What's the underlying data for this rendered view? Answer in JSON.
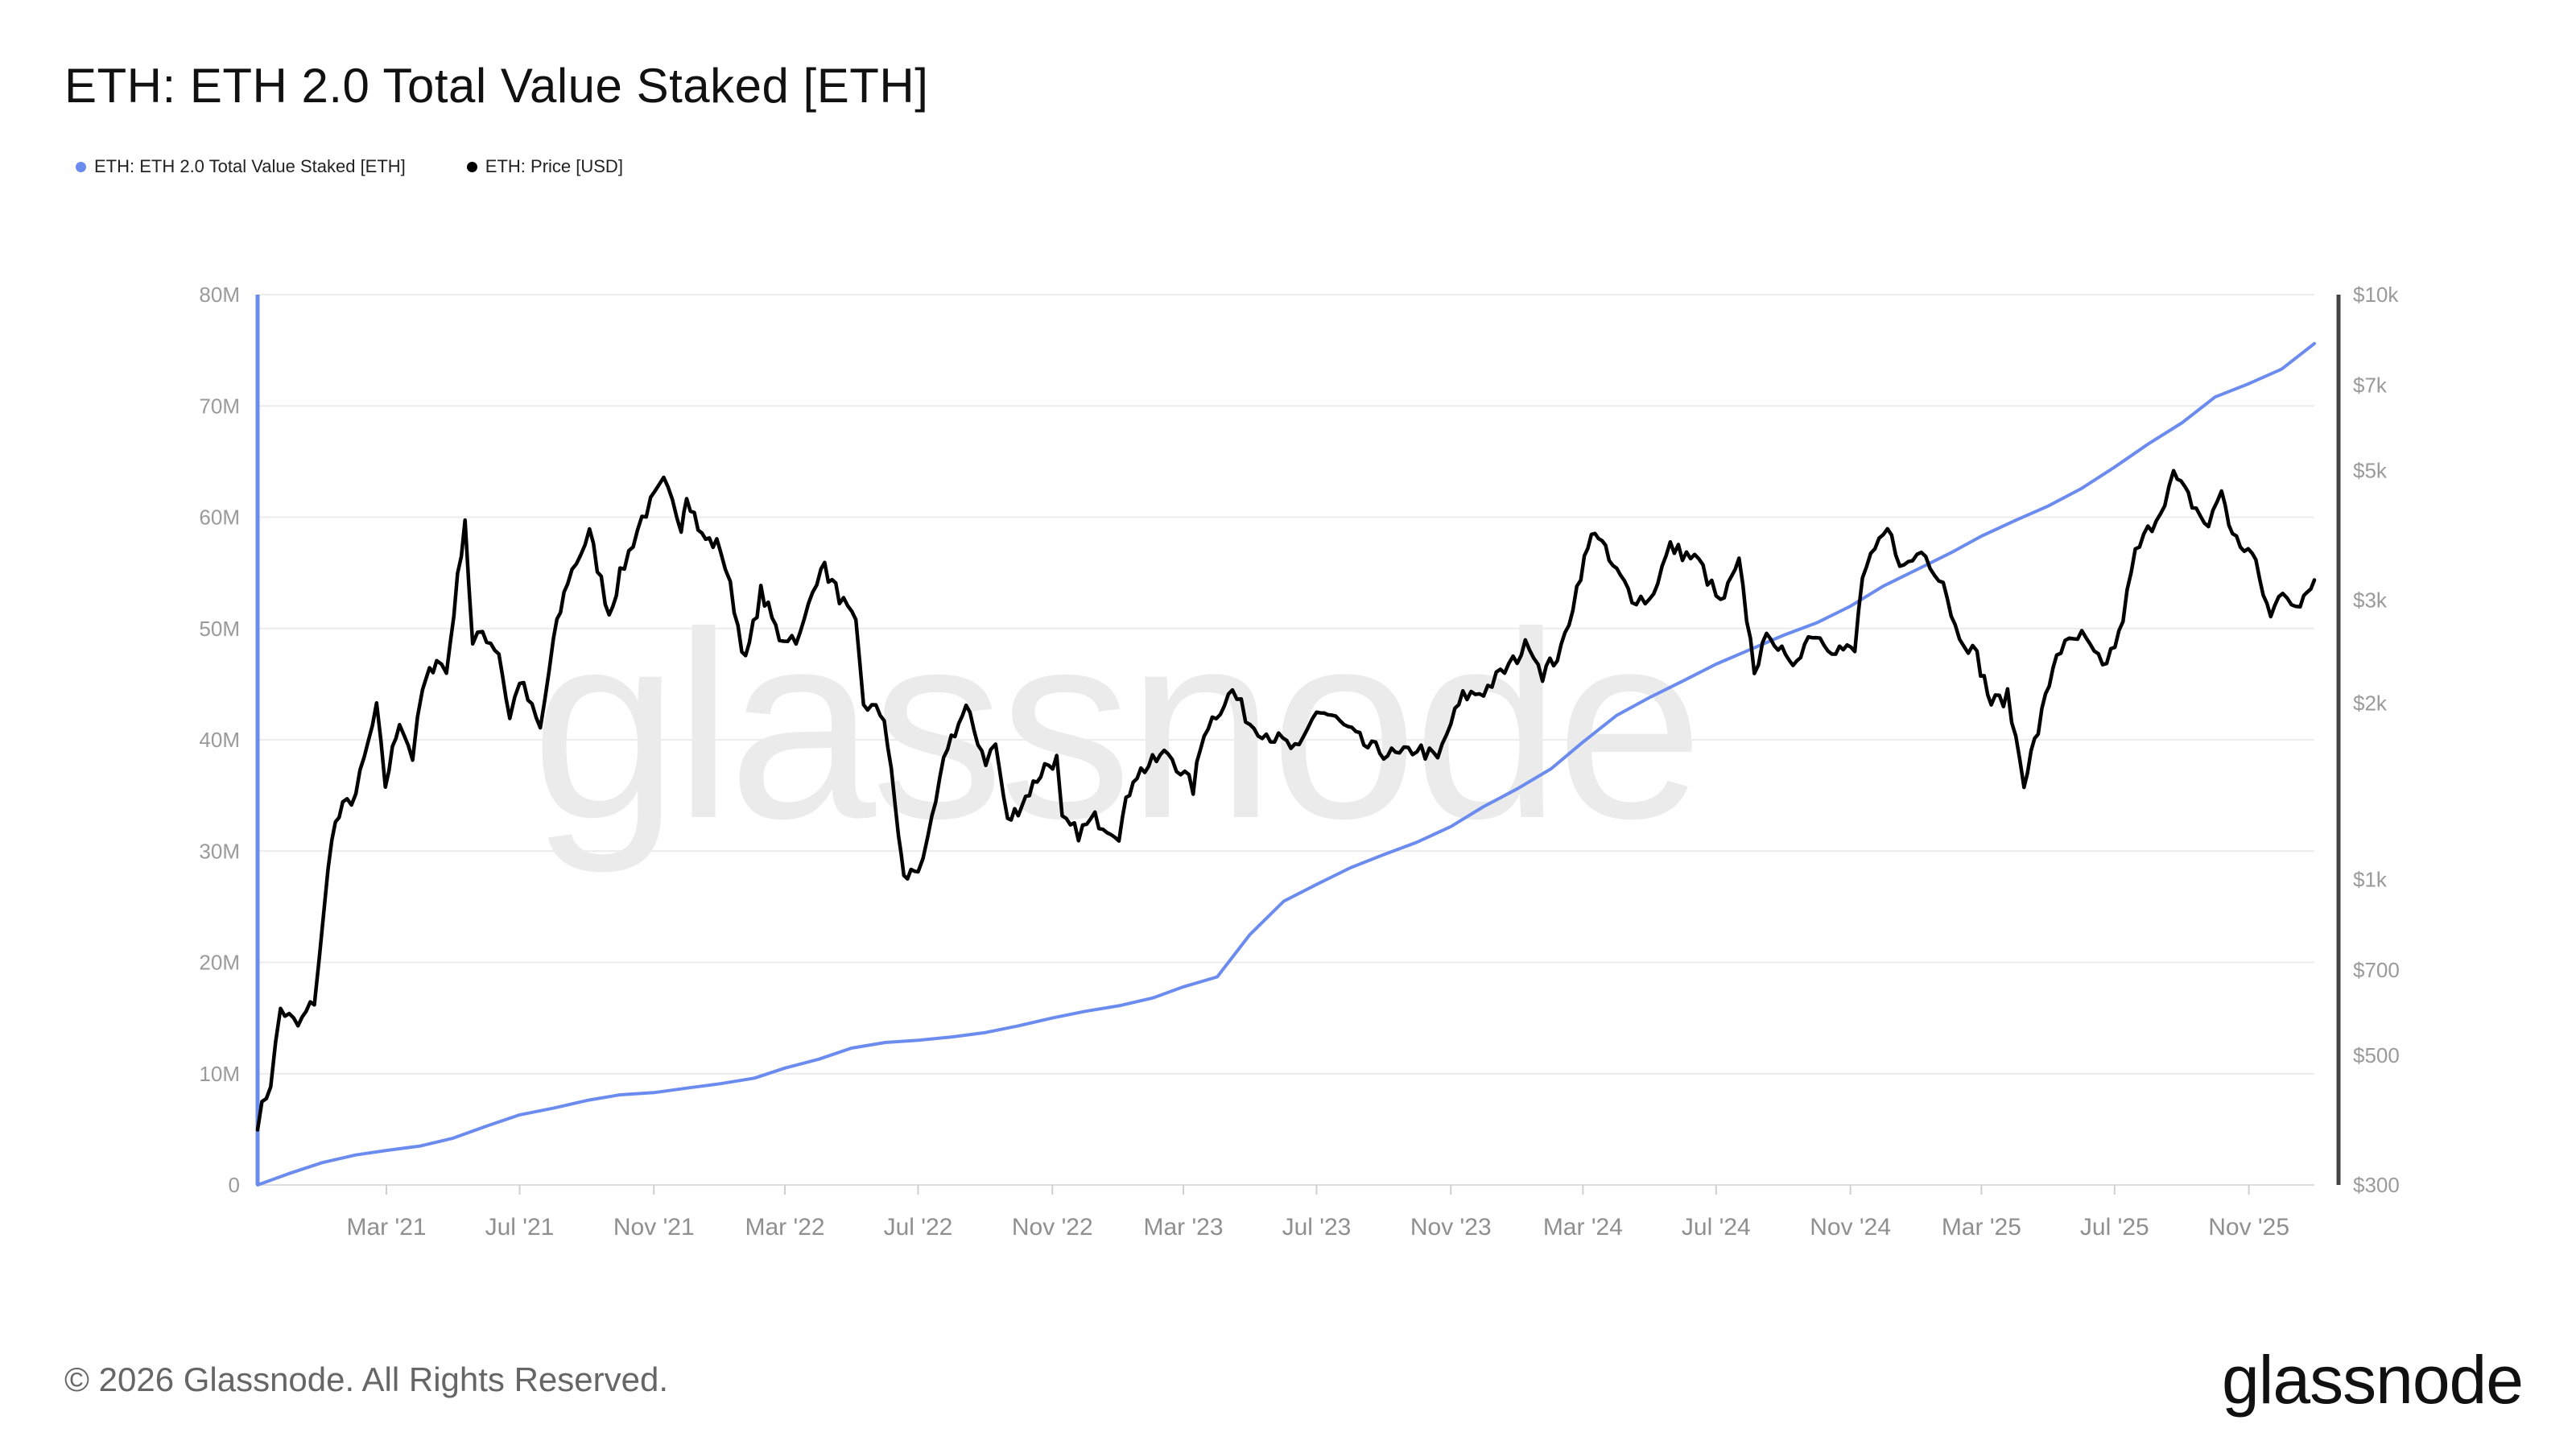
{
  "header": {
    "title": "ETH: ETH 2.0 Total Value Staked [ETH]"
  },
  "legend": {
    "items": [
      {
        "label": "ETH: ETH 2.0 Total Value Staked [ETH]",
        "color": "#6b8cee"
      },
      {
        "label": "ETH: Price [USD]",
        "color": "#000000"
      }
    ]
  },
  "watermark": "glassnode",
  "footer": {
    "copyright": "© 2026 Glassnode. All Rights Reserved.",
    "brand": "glassnode"
  },
  "chart_data": {
    "type": "line",
    "x_start": "2020-11-03",
    "x_end": "2025-12-31",
    "x_ticks": [
      "Mar '21",
      "Jul '21",
      "Nov '21",
      "Mar '22",
      "Jul '22",
      "Nov '22",
      "Mar '23",
      "Jul '23",
      "Nov '23",
      "Mar '24",
      "Jul '24",
      "Nov '24",
      "Mar '25",
      "Jul '25",
      "Nov '25"
    ],
    "y_left": {
      "min": 0,
      "max": 80000000,
      "ticks": [
        0,
        10000000,
        20000000,
        30000000,
        40000000,
        50000000,
        60000000,
        70000000,
        80000000
      ],
      "tick_labels": [
        "0",
        "10M",
        "20M",
        "30M",
        "40M",
        "50M",
        "60M",
        "70M",
        "80M"
      ]
    },
    "y_right": {
      "scale": "log",
      "min": 300,
      "max": 10000,
      "ticks": [
        300,
        500,
        700,
        1000,
        2000,
        3000,
        5000,
        7000,
        10000
      ],
      "tick_labels": [
        "$300",
        "$500",
        "$700",
        "$1k",
        "$2k",
        "$3k",
        "$5k",
        "$7k",
        "$10k"
      ]
    },
    "grid": true,
    "legend_position": "top-left",
    "series": [
      {
        "name": "ETH: ETH 2.0 Total Value Staked [ETH]",
        "axis": "left",
        "color": "#6b8cee",
        "points": [
          [
            "2020-11-03",
            0
          ],
          [
            "2020-12-01",
            1000000
          ],
          [
            "2021-01-01",
            2000000
          ],
          [
            "2021-02-01",
            2700000
          ],
          [
            "2021-03-01",
            3100000
          ],
          [
            "2021-04-01",
            3500000
          ],
          [
            "2021-05-01",
            4200000
          ],
          [
            "2021-06-01",
            5300000
          ],
          [
            "2021-07-01",
            6300000
          ],
          [
            "2021-08-01",
            6900000
          ],
          [
            "2021-09-01",
            7600000
          ],
          [
            "2021-10-01",
            8100000
          ],
          [
            "2021-11-01",
            8300000
          ],
          [
            "2021-12-01",
            8700000
          ],
          [
            "2022-01-01",
            9100000
          ],
          [
            "2022-02-01",
            9600000
          ],
          [
            "2022-03-01",
            10500000
          ],
          [
            "2022-04-01",
            11300000
          ],
          [
            "2022-05-01",
            12300000
          ],
          [
            "2022-06-01",
            12800000
          ],
          [
            "2022-07-01",
            13000000
          ],
          [
            "2022-08-01",
            13300000
          ],
          [
            "2022-09-01",
            13700000
          ],
          [
            "2022-10-01",
            14300000
          ],
          [
            "2022-11-01",
            15000000
          ],
          [
            "2022-12-01",
            15600000
          ],
          [
            "2023-01-01",
            16100000
          ],
          [
            "2023-02-01",
            16800000
          ],
          [
            "2023-03-01",
            17800000
          ],
          [
            "2023-04-01",
            18700000
          ],
          [
            "2023-05-01",
            22500000
          ],
          [
            "2023-06-01",
            25500000
          ],
          [
            "2023-07-01",
            27000000
          ],
          [
            "2023-08-01",
            28500000
          ],
          [
            "2023-09-01",
            29700000
          ],
          [
            "2023-10-01",
            30800000
          ],
          [
            "2023-11-01",
            32200000
          ],
          [
            "2023-12-01",
            34000000
          ],
          [
            "2024-01-01",
            35600000
          ],
          [
            "2024-02-01",
            37400000
          ],
          [
            "2024-03-01",
            39800000
          ],
          [
            "2024-04-01",
            42200000
          ],
          [
            "2024-05-01",
            43800000
          ],
          [
            "2024-06-01",
            45300000
          ],
          [
            "2024-07-01",
            46800000
          ],
          [
            "2024-08-01",
            48100000
          ],
          [
            "2024-09-01",
            49400000
          ],
          [
            "2024-10-01",
            50500000
          ],
          [
            "2024-11-01",
            52000000
          ],
          [
            "2024-12-01",
            53800000
          ],
          [
            "2025-01-01",
            55300000
          ],
          [
            "2025-02-01",
            56800000
          ],
          [
            "2025-03-01",
            58300000
          ],
          [
            "2025-04-01",
            59700000
          ],
          [
            "2025-05-01",
            61000000
          ],
          [
            "2025-06-01",
            62600000
          ],
          [
            "2025-07-01",
            64500000
          ],
          [
            "2025-08-01",
            66600000
          ],
          [
            "2025-09-01",
            68500000
          ],
          [
            "2025-10-01",
            70800000
          ],
          [
            "2025-11-01",
            72000000
          ],
          [
            "2025-12-01",
            73300000
          ],
          [
            "2025-12-31",
            75600000
          ]
        ]
      },
      {
        "name": "ETH: Price [USD]",
        "axis": "right",
        "color": "#000000",
        "points": [
          [
            "2020-11-03",
            385
          ],
          [
            "2020-11-15",
            450
          ],
          [
            "2020-11-24",
            600
          ],
          [
            "2020-12-10",
            560
          ],
          [
            "2020-12-25",
            620
          ],
          [
            "2021-01-03",
            880
          ],
          [
            "2021-01-10",
            1200
          ],
          [
            "2021-01-20",
            1320
          ],
          [
            "2021-02-01",
            1400
          ],
          [
            "2021-02-20",
            1950
          ],
          [
            "2021-02-28",
            1450
          ],
          [
            "2021-03-13",
            1880
          ],
          [
            "2021-03-25",
            1620
          ],
          [
            "2021-04-03",
            2100
          ],
          [
            "2021-04-16",
            2400
          ],
          [
            "2021-04-25",
            2250
          ],
          [
            "2021-05-12",
            4150
          ],
          [
            "2021-05-19",
            2500
          ],
          [
            "2021-05-28",
            2650
          ],
          [
            "2021-06-12",
            2450
          ],
          [
            "2021-06-22",
            1880
          ],
          [
            "2021-07-01",
            2200
          ],
          [
            "2021-07-20",
            1800
          ],
          [
            "2021-08-01",
            2550
          ],
          [
            "2021-08-14",
            3250
          ],
          [
            "2021-09-03",
            3900
          ],
          [
            "2021-09-21",
            2850
          ],
          [
            "2021-10-01",
            3300
          ],
          [
            "2021-10-21",
            4150
          ],
          [
            "2021-11-10",
            4750
          ],
          [
            "2021-11-26",
            4050
          ],
          [
            "2021-12-01",
            4600
          ],
          [
            "2021-12-15",
            3850
          ],
          [
            "2022-01-01",
            3700
          ],
          [
            "2022-01-10",
            3150
          ],
          [
            "2022-01-24",
            2350
          ],
          [
            "2022-02-07",
            3100
          ],
          [
            "2022-02-24",
            2600
          ],
          [
            "2022-03-15",
            2600
          ],
          [
            "2022-04-03",
            3480
          ],
          [
            "2022-04-20",
            3050
          ],
          [
            "2022-05-05",
            2700
          ],
          [
            "2022-05-12",
            2000
          ],
          [
            "2022-05-31",
            1900
          ],
          [
            "2022-06-13",
            1200
          ],
          [
            "2022-06-18",
            1000
          ],
          [
            "2022-07-01",
            1050
          ],
          [
            "2022-07-10",
            1150
          ],
          [
            "2022-07-28",
            1700
          ],
          [
            "2022-08-14",
            1950
          ],
          [
            "2022-09-01",
            1600
          ],
          [
            "2022-09-10",
            1700
          ],
          [
            "2022-09-21",
            1250
          ],
          [
            "2022-10-04",
            1350
          ],
          [
            "2022-10-25",
            1560
          ],
          [
            "2022-11-05",
            1600
          ],
          [
            "2022-11-10",
            1250
          ],
          [
            "2022-11-25",
            1200
          ],
          [
            "2022-12-10",
            1270
          ],
          [
            "2023-01-01",
            1200
          ],
          [
            "2023-01-14",
            1500
          ],
          [
            "2023-02-15",
            1650
          ],
          [
            "2023-03-10",
            1430
          ],
          [
            "2023-03-20",
            1800
          ],
          [
            "2023-04-15",
            2100
          ],
          [
            "2023-05-01",
            1850
          ],
          [
            "2023-06-15",
            1650
          ],
          [
            "2023-07-01",
            1950
          ],
          [
            "2023-07-15",
            1900
          ],
          [
            "2023-08-17",
            1680
          ],
          [
            "2023-09-15",
            1620
          ],
          [
            "2023-10-01",
            1680
          ],
          [
            "2023-10-20",
            1600
          ],
          [
            "2023-11-01",
            1850
          ],
          [
            "2023-11-12",
            2050
          ],
          [
            "2023-12-01",
            2100
          ],
          [
            "2023-12-28",
            2350
          ],
          [
            "2024-01-12",
            2550
          ],
          [
            "2024-01-24",
            2250
          ],
          [
            "2024-02-10",
            2450
          ],
          [
            "2024-02-28",
            3350
          ],
          [
            "2024-03-12",
            4000
          ],
          [
            "2024-03-25",
            3500
          ],
          [
            "2024-04-15",
            3050
          ],
          [
            "2024-05-01",
            3000
          ],
          [
            "2024-05-20",
            3700
          ],
          [
            "2024-06-15",
            3500
          ],
          [
            "2024-07-05",
            2950
          ],
          [
            "2024-07-22",
            3450
          ],
          [
            "2024-08-05",
            2300
          ],
          [
            "2024-08-20",
            2650
          ],
          [
            "2024-09-06",
            2300
          ],
          [
            "2024-09-27",
            2650
          ],
          [
            "2024-10-15",
            2500
          ],
          [
            "2024-11-05",
            2450
          ],
          [
            "2024-11-12",
            3300
          ],
          [
            "2024-12-05",
            3950
          ],
          [
            "2024-12-20",
            3400
          ],
          [
            "2025-01-05",
            3650
          ],
          [
            "2025-01-25",
            3250
          ],
          [
            "2025-02-05",
            2700
          ],
          [
            "2025-02-25",
            2400
          ],
          [
            "2025-03-10",
            2000
          ],
          [
            "2025-03-25",
            2050
          ],
          [
            "2025-04-09",
            1480
          ],
          [
            "2025-04-22",
            1800
          ],
          [
            "2025-05-09",
            2450
          ],
          [
            "2025-06-01",
            2600
          ],
          [
            "2025-06-20",
            2300
          ],
          [
            "2025-07-05",
            2600
          ],
          [
            "2025-07-20",
            3600
          ],
          [
            "2025-08-12",
            4300
          ],
          [
            "2025-08-24",
            4900
          ],
          [
            "2025-09-10",
            4400
          ],
          [
            "2025-09-25",
            4000
          ],
          [
            "2025-10-07",
            4650
          ],
          [
            "2025-10-17",
            3850
          ],
          [
            "2025-11-04",
            3600
          ],
          [
            "2025-11-21",
            2800
          ],
          [
            "2025-12-02",
            3150
          ],
          [
            "2025-12-18",
            2900
          ],
          [
            "2025-12-31",
            3250
          ]
        ]
      }
    ]
  }
}
